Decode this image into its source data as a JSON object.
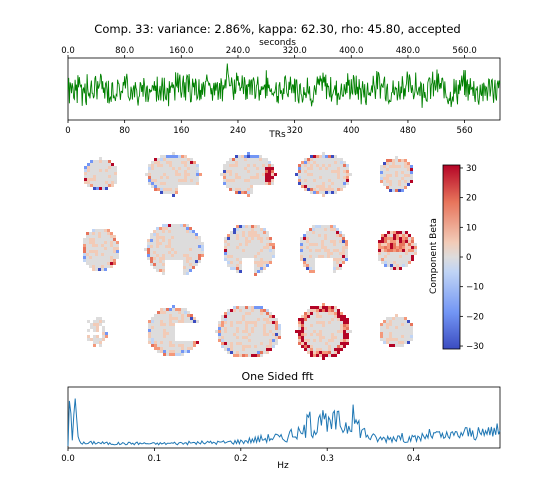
{
  "title": "Comp. 33: variance: 2.86%, kappa: 62.30, rho: 45.80, accepted",
  "timeseries": {
    "top_axis_label": "seconds",
    "bottom_axis_label": "TRs",
    "top_ticks": [
      "0.0",
      "80.0",
      "160.0",
      "240.0",
      "320.0",
      "400.0",
      "480.0",
      "560.0"
    ],
    "top_tick_values": [
      0,
      80,
      160,
      240,
      320,
      400,
      480,
      560
    ],
    "bottom_ticks": [
      "0",
      "80",
      "160",
      "240",
      "320",
      "400",
      "480",
      "560"
    ],
    "bottom_tick_values": [
      0,
      80,
      160,
      240,
      320,
      400,
      480,
      560
    ],
    "xlim": [
      0,
      610
    ],
    "color": "#008000"
  },
  "colorbar": {
    "label": "Component Beta",
    "ticks": [
      "30",
      "20",
      "10",
      "0",
      "−10",
      "−20",
      "−30"
    ],
    "tick_values": [
      30,
      20,
      10,
      0,
      -10,
      -20,
      -30
    ],
    "range": [
      -31,
      31
    ],
    "colormap": "coolwarm"
  },
  "fft": {
    "title": "One Sided fft",
    "xlabel": "Hz",
    "ticks": [
      "0.0",
      "0.1",
      "0.2",
      "0.3",
      "0.4"
    ],
    "tick_values": [
      0.0,
      0.1,
      0.2,
      0.3,
      0.4
    ],
    "xlim": [
      0,
      0.5
    ],
    "color": "#1f77b4"
  },
  "chart_data": [
    {
      "type": "line",
      "title": "Comp. 33: variance: 2.86%, kappa: 62.30, rho: 45.80, accepted",
      "xlabel": "TRs",
      "x2label": "seconds",
      "xlim": [
        0,
        610
      ],
      "series": [
        {
          "color": "#008000",
          "note_values": "component time series, ~610 TRs, noisy around zero",
          "x": [
            0,
            20,
            40,
            60,
            80,
            100,
            120,
            140,
            160,
            180,
            200,
            220,
            225,
            240,
            260,
            280,
            300,
            320,
            340,
            360,
            380,
            400,
            420,
            440,
            460,
            480,
            500,
            520,
            540,
            560,
            580,
            600
          ],
          "y": [
            0.1,
            -0.4,
            0.3,
            -0.2,
            0.5,
            -0.5,
            0.2,
            -0.3,
            0.4,
            -0.1,
            0.3,
            -0.6,
            1.0,
            0.4,
            -0.3,
            0.6,
            -0.4,
            0.5,
            -0.6,
            0.7,
            -0.3,
            0.6,
            -0.5,
            0.8,
            -0.4,
            0.6,
            -0.5,
            0.7,
            -0.6,
            0.5,
            -0.4,
            0.3
          ]
        }
      ]
    },
    {
      "type": "line",
      "title": "One Sided fft",
      "xlabel": "Hz",
      "xlim": [
        0,
        0.5
      ],
      "series": [
        {
          "color": "#1f77b4",
          "x": [
            0.0,
            0.002,
            0.005,
            0.008,
            0.012,
            0.02,
            0.03,
            0.05,
            0.08,
            0.1,
            0.12,
            0.15,
            0.18,
            0.2,
            0.22,
            0.24,
            0.25,
            0.26,
            0.27,
            0.28,
            0.285,
            0.29,
            0.3,
            0.31,
            0.32,
            0.33,
            0.34,
            0.35,
            0.36,
            0.38,
            0.4,
            0.42,
            0.44,
            0.46,
            0.48,
            0.49,
            0.5
          ],
          "y": [
            0.0,
            0.95,
            0.1,
            0.9,
            0.1,
            0.05,
            0.08,
            0.05,
            0.06,
            0.05,
            0.06,
            0.07,
            0.08,
            0.1,
            0.15,
            0.2,
            0.15,
            0.3,
            0.25,
            0.55,
            0.35,
            0.8,
            0.4,
            0.55,
            0.45,
            0.6,
            0.35,
            0.2,
            0.15,
            0.2,
            0.15,
            0.25,
            0.2,
            0.3,
            0.25,
            0.35,
            0.3
          ]
        }
      ]
    }
  ]
}
